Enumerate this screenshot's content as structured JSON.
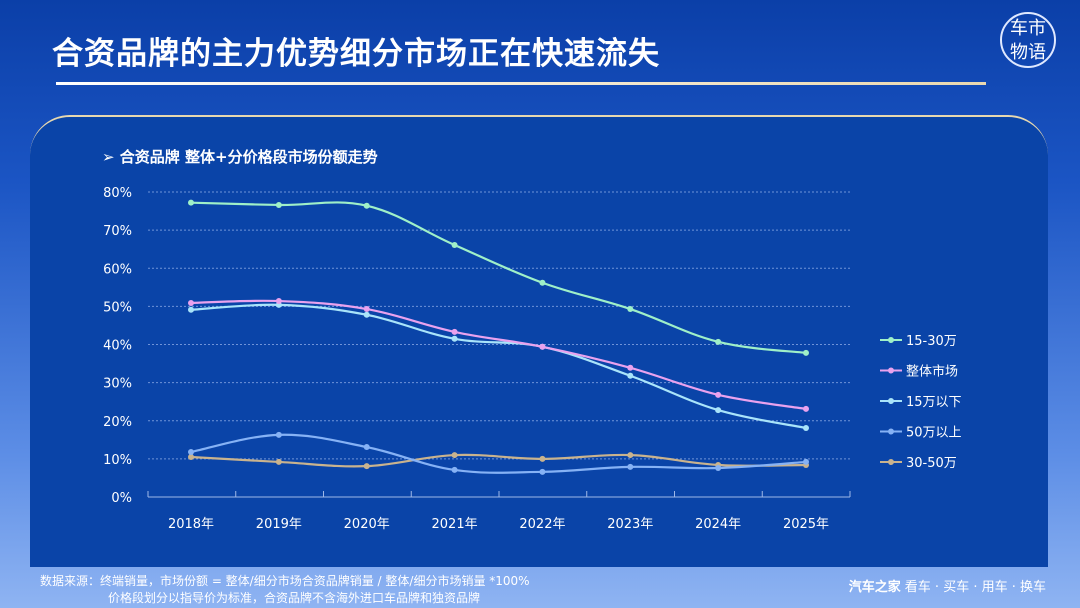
{
  "title": "合资品牌的主力优势细分市场正在快速流失",
  "logo_text": "车市物语",
  "footer": {
    "line1": "数据来源：终端销量，市场份额 = 整体/细分市场合资品牌销量 / 整体/细分市场销量 *100%",
    "line2": "价格段划分以指导价为标准，合资品牌不含海外进口车品牌和独资品牌",
    "brand": "汽车之家",
    "slogan": "看车 · 买车 · 用车 · 换车"
  },
  "chart_data": {
    "type": "line",
    "title": "➢  合资品牌 整体+分价格段市场份额走势",
    "categories": [
      "2018年",
      "2019年",
      "2020年",
      "2021年",
      "2022年",
      "2023年",
      "2024年",
      "2025年"
    ],
    "ylim": [
      0,
      80
    ],
    "yticks": [
      "0%",
      "10%",
      "20%",
      "30%",
      "40%",
      "50%",
      "60%",
      "70%",
      "80%"
    ],
    "grid": true,
    "legend": "right",
    "series": [
      {
        "name": "15-30万",
        "color": "#9ff0c8",
        "values": [
          77.2,
          76.6,
          76.4,
          66.1,
          56.2,
          49.3,
          40.7,
          37.8
        ]
      },
      {
        "name": "整体市场",
        "color": "#e9a2ee",
        "values": [
          50.9,
          51.4,
          49.3,
          43.3,
          39.4,
          33.9,
          26.8,
          23.1
        ]
      },
      {
        "name": "15万以下",
        "color": "#a9e4fa",
        "values": [
          49.1,
          50.4,
          47.8,
          41.5,
          39.4,
          31.8,
          22.8,
          18.1
        ]
      },
      {
        "name": "50万以上",
        "color": "#86b2f5",
        "values": [
          11.8,
          16.3,
          13.1,
          7.1,
          6.6,
          7.9,
          7.6,
          9.2
        ]
      },
      {
        "name": "30-50万",
        "color": "#c9b38e",
        "values": [
          10.5,
          9.2,
          8.1,
          11.0,
          10.0,
          11.0,
          8.4,
          8.4
        ]
      }
    ]
  }
}
